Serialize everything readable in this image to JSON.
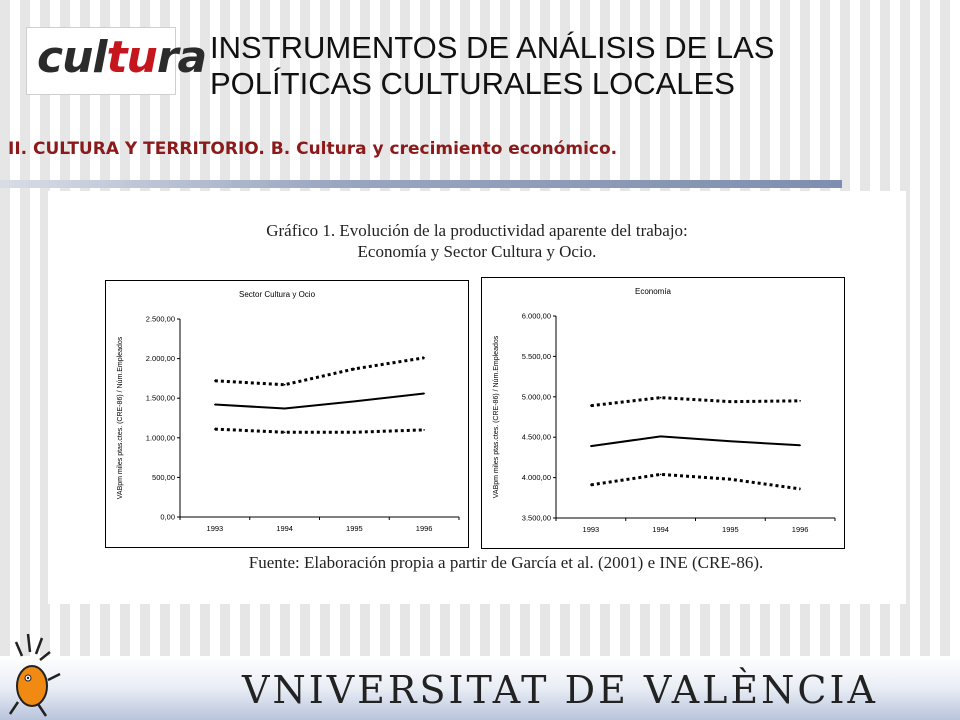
{
  "header": {
    "logo_text_pre": "cul",
    "logo_text_accent": "tu",
    "logo_text_post": "ra",
    "title_line1": "INSTRUMENTOS DE ANÁLISIS DE LAS",
    "title_line2": "POLÍTICAS CULTURALES LOCALES",
    "subtitle": "II. CULTURA Y TERRITORIO. B. Cultura y crecimiento económico."
  },
  "figure": {
    "title_line1": "Gráfico 1. Evolución de la productividad aparente del trabajo:",
    "title_line2": "Economía y Sector Cultura y Ocio.",
    "source": "Fuente: Elaboración propia a partir de García et al. (2001) e INE (CRE-86)."
  },
  "footer": {
    "university": "VNIVERSITAT DE VALÈNCIA"
  },
  "chart_data": [
    {
      "type": "line",
      "title": "Sector Cultura y Ocio",
      "ylabel": "VABpm miles ptas.ctes. (CRE-86) / Núm.Empleados",
      "xlabel": "",
      "x": [
        "1993",
        "1994",
        "1995",
        "1996"
      ],
      "ylim": [
        0,
        2500
      ],
      "yticks": [
        "0,00",
        "500,00",
        "1.000,00",
        "1.500,00",
        "2.000,00",
        "2.500,00"
      ],
      "ytick_values": [
        0,
        500,
        1000,
        1500,
        2000,
        2500
      ],
      "grid": false,
      "series": [
        {
          "style": "dotted",
          "values": [
            1720,
            1670,
            1870,
            2010
          ]
        },
        {
          "style": "solid",
          "values": [
            1420,
            1370,
            1460,
            1560
          ]
        },
        {
          "style": "dotted",
          "values": [
            1110,
            1070,
            1070,
            1100
          ]
        }
      ]
    },
    {
      "type": "line",
      "title": "Economía",
      "ylabel": "VABpm miles ptas.ctes. (CRE-86) / Núm.Empleados",
      "xlabel": "",
      "x": [
        "1993",
        "1994",
        "1995",
        "1996"
      ],
      "ylim": [
        3500,
        6000
      ],
      "yticks": [
        "3.500,00",
        "4.000,00",
        "4.500,00",
        "5.000,00",
        "5.500,00",
        "6.000,00"
      ],
      "ytick_values": [
        3500,
        4000,
        4500,
        5000,
        5500,
        6000
      ],
      "grid": false,
      "series": [
        {
          "style": "dotted",
          "values": [
            4890,
            4990,
            4940,
            4950
          ]
        },
        {
          "style": "solid",
          "values": [
            4390,
            4510,
            4450,
            4400
          ]
        },
        {
          "style": "dotted",
          "values": [
            3910,
            4040,
            3980,
            3860
          ]
        }
      ]
    }
  ]
}
